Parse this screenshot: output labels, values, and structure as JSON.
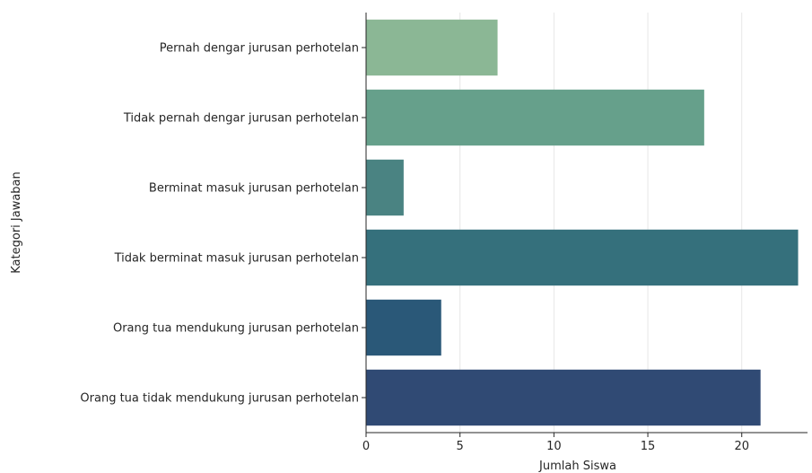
{
  "chart_data": {
    "type": "bar",
    "orientation": "horizontal",
    "categories": [
      "Pernah dengar jurusan perhotelan",
      "Tidak pernah dengar jurusan perhotelan",
      "Berminat masuk jurusan perhotelan",
      "Tidak berminat masuk jurusan perhotelan",
      "Orang tua mendukung jurusan perhotelan",
      "Orang tua tidak mendukung jurusan perhotelan"
    ],
    "values": [
      7,
      18,
      2,
      23,
      4,
      21
    ],
    "colors": [
      "#8bb795",
      "#66a08b",
      "#4a8382",
      "#35707c",
      "#2a5878",
      "#304a74"
    ],
    "xlabel": "Jumlah Siswa",
    "ylabel": "Kategori Jawaban",
    "xlim": [
      0,
      23.5
    ],
    "xticks": [
      0,
      5,
      10,
      15,
      20
    ],
    "grid": "vertical"
  }
}
